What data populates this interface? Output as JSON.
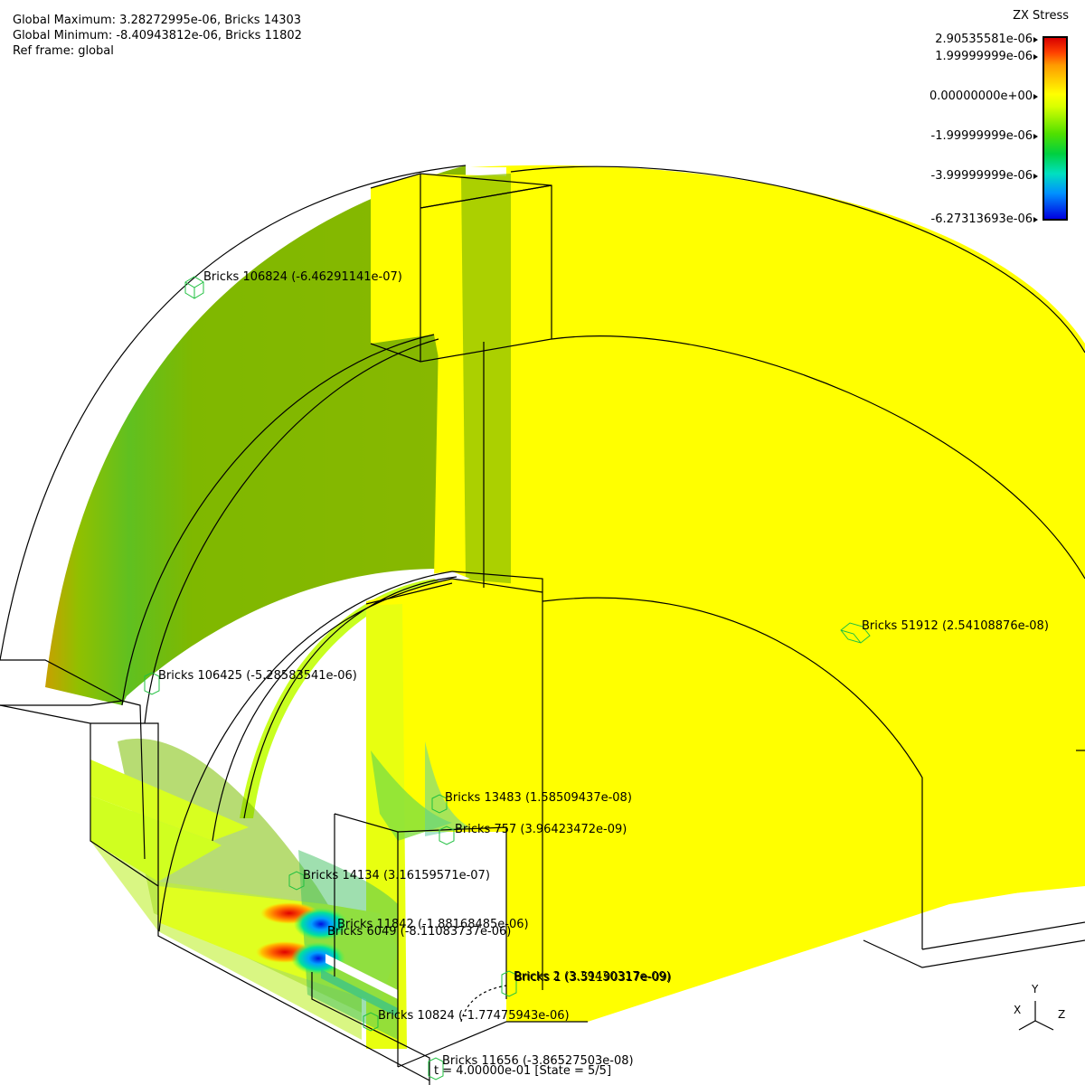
{
  "hud": {
    "global_max": "Global Maximum: 3.28272995e-06, Bricks 14303",
    "global_min": "Global Minimum: -8.40943812e-06, Bricks 11802",
    "ref_frame": "Ref frame: global"
  },
  "legend": {
    "title": "ZX Stress",
    "labels": [
      "2.90535581e-06",
      "1.99999999e-06",
      "0.00000000e+00",
      "-1.99999999e-06",
      "-3.99999999e-06",
      "-6.27313693e-06"
    ],
    "colors": {
      "max": "#d80000",
      "mid": "#ffff00",
      "min": "#0000e0"
    }
  },
  "bricks": [
    "Bricks 106824 (-6.46291141e-07)",
    "Bricks 51912 (2.54108876e-08)",
    "Bricks 106425 (-5.28583541e-06)",
    "Bricks 13483 (1.58509437e-08)",
    "Bricks 757 (3.96423472e-09)",
    "Bricks 14134 (3.16159571e-07)",
    "Bricks 11842 (-1.88168485e-06)",
    "Bricks 6049 (-8.11083737e-06)",
    "Bricks 2 (3.39430317e-09)",
    "Bricks 1 (3.51190317e-09)",
    "Bricks 10824 (-1.77475943e-06)",
    "Bricks 11656 (-3.86527503e-08)"
  ],
  "time": "t = 4.00000e-01 [State = 5/5]",
  "axes": {
    "y": "Y",
    "x": "X",
    "z": "Z"
  }
}
